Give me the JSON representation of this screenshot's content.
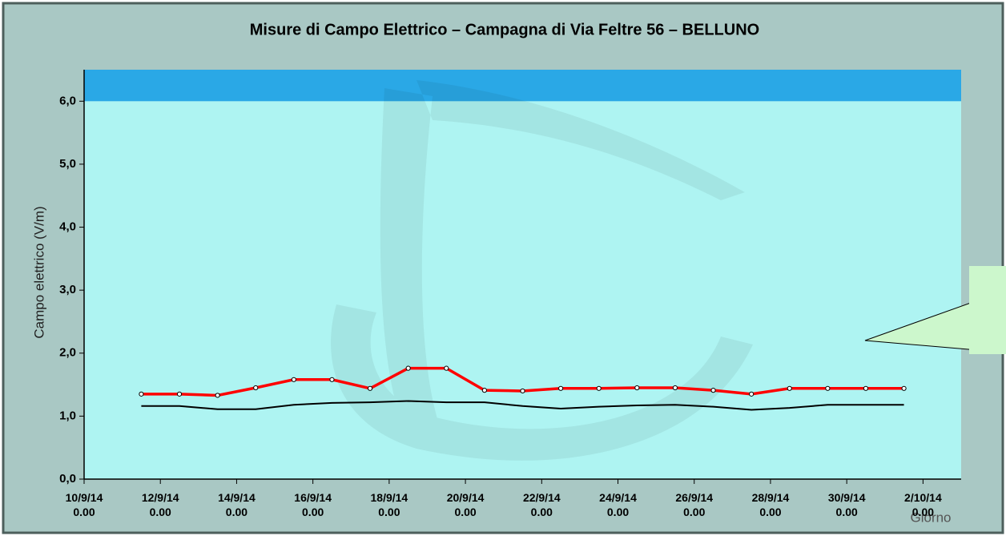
{
  "chart_data": {
    "type": "line",
    "title": "Misure di Campo Elettrico – Campagna di Via Feltre 56 – BELLUNO",
    "y_label": "Campo elettrico (V/m)",
    "x_label": "Giorno",
    "x": [
      "2014-09-11T12:00",
      "2014-09-12T12:00",
      "2014-09-13T12:00",
      "2014-09-14T12:00",
      "2014-09-15T12:00",
      "2014-09-16T12:00",
      "2014-09-17T12:00",
      "2014-09-18T12:00",
      "2014-09-19T12:00",
      "2014-09-20T12:00",
      "2014-09-21T12:00",
      "2014-09-22T12:00",
      "2014-09-23T12:00",
      "2014-09-24T12:00",
      "2014-09-25T12:00",
      "2014-09-26T12:00",
      "2014-09-27T12:00",
      "2014-09-28T12:00",
      "2014-09-29T12:00",
      "2014-09-30T12:00",
      "2014-10-01T12:00"
    ],
    "series": [
      {
        "color": "#ff0000",
        "markers": true,
        "values": [
          1.35,
          1.35,
          1.33,
          1.45,
          1.58,
          1.58,
          1.44,
          1.76,
          1.76,
          1.41,
          1.4,
          1.44,
          1.44,
          1.45,
          1.45,
          1.41,
          1.35,
          1.44,
          1.44,
          1.44,
          1.44
        ]
      },
      {
        "color": "#000000",
        "markers": false,
        "values": [
          1.16,
          1.16,
          1.11,
          1.11,
          1.18,
          1.21,
          1.22,
          1.24,
          1.22,
          1.22,
          1.16,
          1.12,
          1.15,
          1.17,
          1.18,
          1.15,
          1.1,
          1.13,
          1.18,
          1.18,
          1.18
        ]
      }
    ],
    "band": {
      "from": 6.0,
      "to": 6.5,
      "color": "#2aa8e6"
    },
    "plot_color": "#aef4f2",
    "xlim": [
      "2014-09-10T00:00",
      "2014-10-03T00:00"
    ],
    "xticks": [
      {
        "value": "2014-09-10T00:00",
        "label": "10/9/14\n0.00"
      },
      {
        "value": "2014-09-12T00:00",
        "label": "12/9/14\n0.00"
      },
      {
        "value": "2014-09-14T00:00",
        "label": "14/9/14\n0.00"
      },
      {
        "value": "2014-09-16T00:00",
        "label": "16/9/14\n0.00"
      },
      {
        "value": "2014-09-18T00:00",
        "label": "18/9/14\n0.00"
      },
      {
        "value": "2014-09-20T00:00",
        "label": "20/9/14\n0.00"
      },
      {
        "value": "2014-09-22T00:00",
        "label": "22/9/14\n0.00"
      },
      {
        "value": "2014-09-24T00:00",
        "label": "24/9/14\n0.00"
      },
      {
        "value": "2014-09-26T00:00",
        "label": "26/9/14\n0.00"
      },
      {
        "value": "2014-09-28T00:00",
        "label": "28/9/14\n0.00"
      },
      {
        "value": "2014-09-30T00:00",
        "label": "30/9/14\n0.00"
      },
      {
        "value": "2014-10-02T00:00",
        "label": "2/10/14\n0.00"
      }
    ],
    "ylim": [
      0,
      6.5
    ],
    "yticks": [
      {
        "value": 0,
        "label": "0,0"
      },
      {
        "value": 1,
        "label": "1,0"
      },
      {
        "value": 2,
        "label": "2,0"
      },
      {
        "value": 3,
        "label": "3,0"
      },
      {
        "value": 4,
        "label": "4,0"
      },
      {
        "value": 5,
        "label": "5,0"
      },
      {
        "value": 6,
        "label": "6,0"
      }
    ]
  }
}
